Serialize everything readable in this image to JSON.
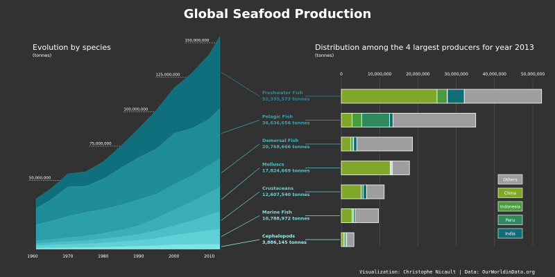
{
  "title": "Global Seafood Production",
  "footer": "Visualization: Christophe Nicault | Data: OurWorldinData.org",
  "chart_data": [
    {
      "type": "area",
      "title": "Evolution by species",
      "unit_label": "(tonnes)",
      "x_ticks": [
        "1960",
        "1970",
        "1980",
        "1990",
        "2000",
        "2010"
      ],
      "annotations": [
        {
          "label": "50,000,000",
          "value": 50000000
        },
        {
          "label": "75,000,000",
          "value": 75000000
        },
        {
          "label": "100,000,000",
          "value": 100000000
        },
        {
          "label": "125,000,000",
          "value": 125000000
        },
        {
          "label": "150,000,000",
          "value": 150000000
        }
      ],
      "x": [
        1961,
        1965,
        1970,
        1975,
        1980,
        1985,
        1990,
        1995,
        2000,
        2005,
        2010,
        2013
      ],
      "series": [
        {
          "name": "Cephalopods",
          "color": "#7ae6ea",
          "values": [
            1.1,
            1.3,
            1.4,
            1.6,
            1.8,
            2.1,
            2.5,
            2.9,
            3.6,
            3.7,
            3.8,
            3.9
          ]
        },
        {
          "name": "Marine Fish",
          "color": "#5fd0d6",
          "values": [
            1.8,
            2.0,
            2.3,
            2.5,
            3.0,
            3.6,
            4.2,
            5.2,
            6.8,
            8.5,
            10.1,
            10.8
          ]
        },
        {
          "name": "Crustaceans",
          "color": "#4cc0c8",
          "values": [
            1.4,
            1.6,
            1.9,
            2.3,
            2.9,
            3.4,
            4.2,
            5.5,
            6.8,
            8.5,
            11.2,
            12.6
          ]
        },
        {
          "name": "Molluscs",
          "color": "#3aafb8",
          "values": [
            1.9,
            2.3,
            2.8,
            3.2,
            3.9,
            4.8,
            6.4,
            8.9,
            11.5,
            13.6,
            16.0,
            17.8
          ]
        },
        {
          "name": "Demersal Fish",
          "color": "#2c9ea8",
          "values": [
            11.5,
            13.0,
            15.5,
            17.2,
            17.5,
            18.2,
            18.8,
            17.5,
            18.5,
            19.0,
            20.0,
            20.8
          ]
        },
        {
          "name": "Pelagic Fish",
          "color": "#1f8d98",
          "values": [
            12.0,
            15.5,
            21.5,
            19.0,
            22.0,
            27.0,
            30.5,
            33.0,
            37.0,
            34.5,
            33.5,
            36.6
          ]
        },
        {
          "name": "Freshwater Fish",
          "color": "#0f6f7c",
          "values": [
            7.0,
            8.0,
            9.5,
            10.5,
            12.5,
            16.0,
            21.0,
            28.0,
            33.0,
            40.0,
            47.0,
            52.3
          ]
        }
      ],
      "ylim": [
        0,
        155000000
      ]
    },
    {
      "type": "bar",
      "title": "Distribution among the 4 largest producers for year 2013",
      "unit_label": "(tonnes)",
      "x_ticks": [
        "0",
        "10,000,000",
        "20,000,000",
        "30,000,000",
        "40,000,000",
        "50,000,000"
      ],
      "xlim": [
        0,
        50000000
      ],
      "categories": [
        {
          "name": "Freshwater Fish",
          "total": "52,335,573 tonnes",
          "color": "#2e8b9a"
        },
        {
          "name": "Pelagic Fish",
          "total": "36,636,656 tonnes",
          "color": "#3aa3ae"
        },
        {
          "name": "Demersal Fish",
          "total": "20,768,666 tonnes",
          "color": "#4ab4bf"
        },
        {
          "name": "Molluscs",
          "total": "17,824,669 tonnes",
          "color": "#5ac4cc"
        },
        {
          "name": "Crustaceans",
          "total": "12,607,540 tonnes",
          "color": "#6ad2d8"
        },
        {
          "name": "Marine Fish",
          "total": "10,788,972 tonnes",
          "color": "#7ae0e4"
        },
        {
          "name": "Cephalopods",
          "total": "3,886,145 tonnes",
          "color": "#9af0f2"
        }
      ],
      "series": [
        {
          "name": "China",
          "color": "#7fa72a",
          "values": [
            25.0,
            2.8,
            2.5,
            12.8,
            5.2,
            2.8,
            0.6
          ]
        },
        {
          "name": "Indonesia",
          "color": "#4a9a3e",
          "values": [
            2.6,
            2.5,
            0.6,
            0.2,
            0.5,
            0.3,
            0.3
          ]
        },
        {
          "name": "Peru",
          "color": "#2f8a5e",
          "values": [
            0.1,
            7.3,
            0.1,
            0.2,
            0.0,
            0.1,
            0.4
          ]
        },
        {
          "name": "India",
          "color": "#116d76",
          "values": [
            4.4,
            0.9,
            0.9,
            0.1,
            0.9,
            0.4,
            0.1
          ]
        },
        {
          "name": "Others",
          "color": "#9e9e9e",
          "values": [
            20.2,
            21.6,
            14.5,
            4.5,
            4.6,
            6.1,
            1.9
          ]
        }
      ],
      "legend_order": [
        "Others",
        "China",
        "Indonesia",
        "Peru",
        "India"
      ]
    }
  ]
}
